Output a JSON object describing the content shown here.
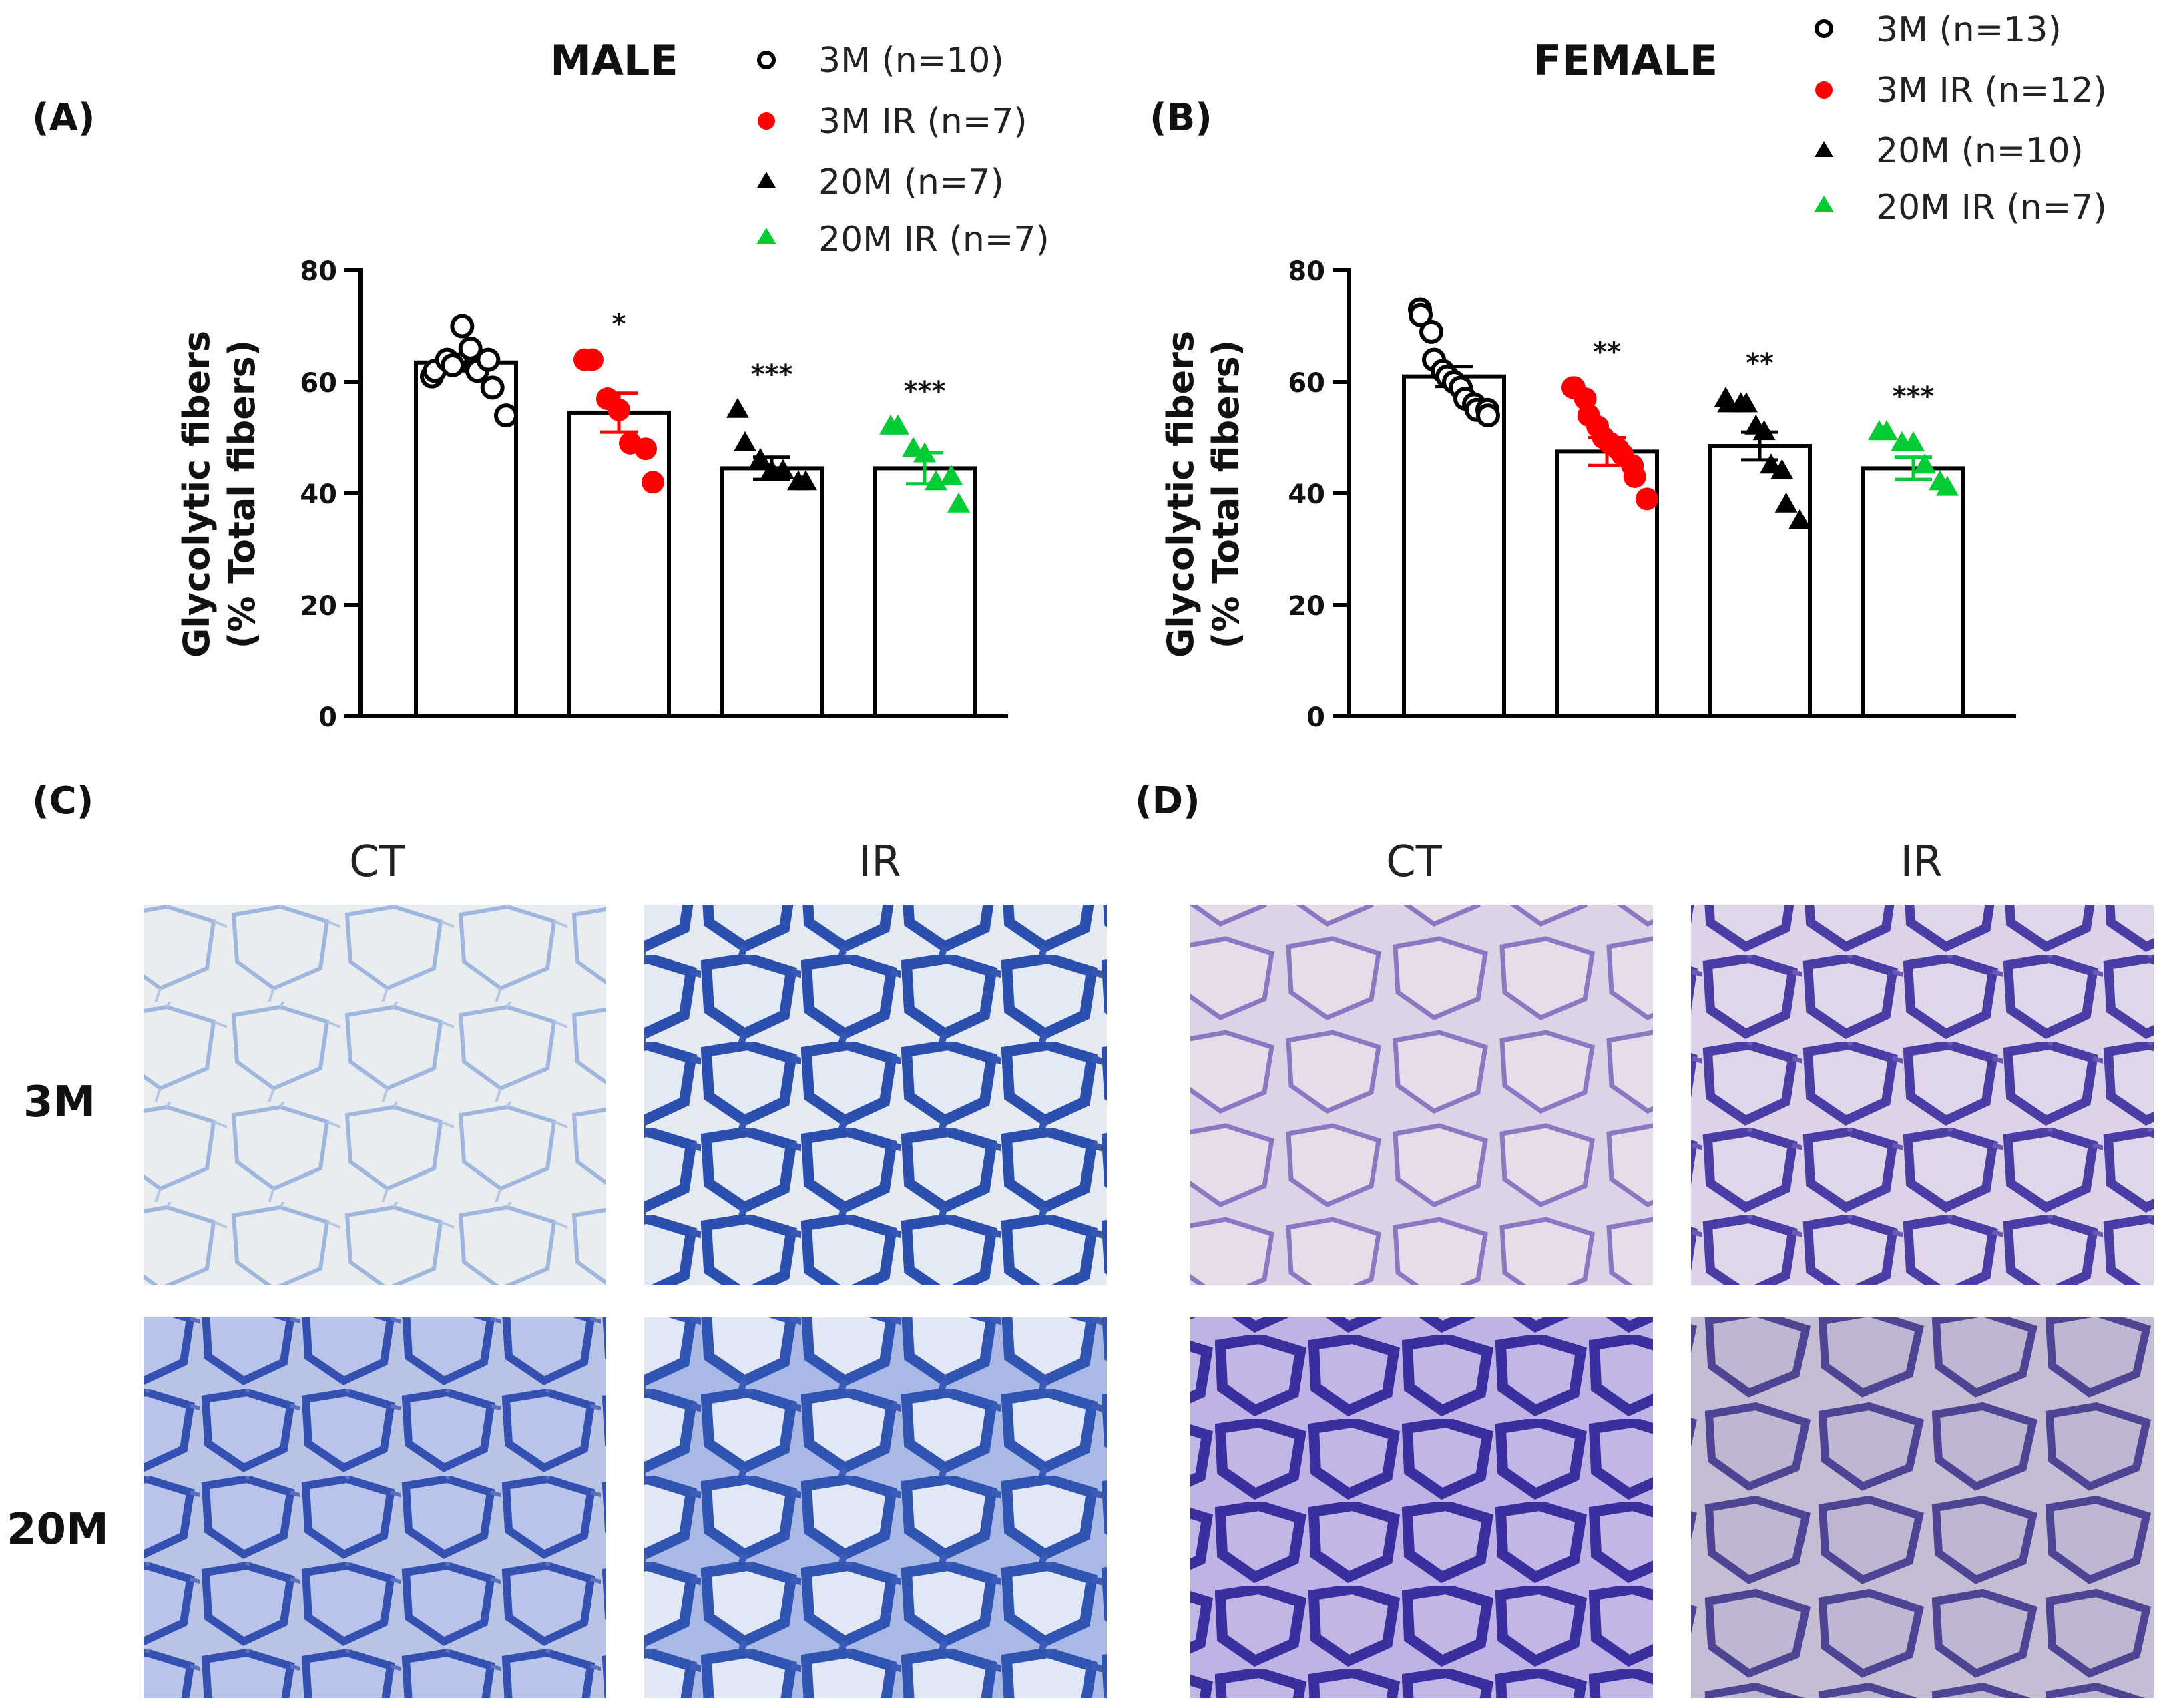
{
  "chart_data": [
    {
      "type": "bar",
      "panel": "(A)",
      "title": "MALE",
      "ylabel_line1": "Glycolytic fibers",
      "ylabel_line2": "(% Total fibers)",
      "ylim": [
        0,
        80
      ],
      "yticks": [
        "0",
        "20",
        "40",
        "60",
        "80"
      ],
      "categories": [
        "3M",
        "3M IR",
        "20M",
        "20M IR"
      ],
      "values": [
        63.5,
        54.5,
        44.5,
        44.5
      ],
      "sem": [
        1.5,
        3.5,
        2,
        2.8
      ],
      "significance": [
        "",
        "*",
        "***",
        "***"
      ],
      "legend": [
        "3M (n=10)",
        "3M IR (n=7)",
        "20M (n=7)",
        "20M IR (n=7)"
      ],
      "points": [
        [
          61,
          62,
          64,
          63,
          70,
          66,
          62,
          64,
          59,
          54
        ],
        [
          64,
          64,
          57,
          55,
          49,
          48,
          42
        ],
        [
          55,
          49,
          46,
          44,
          44,
          42,
          42
        ],
        [
          52,
          52,
          48,
          47,
          42,
          43,
          38
        ]
      ]
    },
    {
      "type": "bar",
      "panel": "(B)",
      "title": "FEMALE",
      "ylabel_line1": "Glycolytic fibers",
      "ylabel_line2": "(% Total fibers)",
      "ylim": [
        0,
        80
      ],
      "yticks": [
        "0",
        "20",
        "40",
        "60",
        "80"
      ],
      "categories": [
        "3M",
        "3M IR",
        "20M",
        "20M IR"
      ],
      "values": [
        61,
        47.5,
        48.5,
        44.5
      ],
      "sem": [
        1.8,
        2.5,
        2.5,
        2
      ],
      "significance": [
        "",
        "**",
        "**",
        "***"
      ],
      "legend": [
        "3M (n=13)",
        "3M IR (n=12)",
        "20M (n=10)",
        "20M IR (n=7)"
      ],
      "points": [
        [
          73,
          72,
          69,
          64,
          62,
          61,
          60,
          59,
          57,
          56,
          55,
          55,
          54
        ],
        [
          59,
          59,
          57,
          54,
          52,
          50,
          49,
          48,
          47,
          45,
          43,
          39
        ],
        [
          57,
          56,
          56,
          56,
          52,
          51,
          45,
          44,
          38,
          35
        ],
        [
          51,
          51,
          49,
          49,
          45,
          42,
          41
        ]
      ]
    }
  ],
  "marker_colors": {
    "ir_3m": "#ff0000",
    "ir_20m": "#00cc33",
    "aged": "#000000"
  },
  "images": {
    "panel_c": {
      "label": "(C)",
      "col1": "CT",
      "col2": "IR"
    },
    "panel_d": {
      "label": "(D)",
      "col1": "CT",
      "col2": "IR"
    },
    "row1": "3M",
    "row2": "20M"
  }
}
